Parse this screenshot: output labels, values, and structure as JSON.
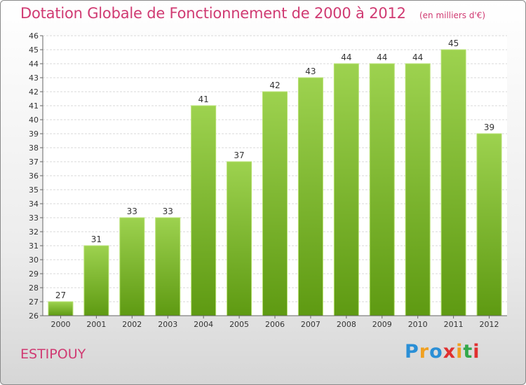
{
  "header": {
    "title": "Dotation Globale de Fonctionnement de 2000 à 2012",
    "subtitle": "(en milliers d'€)"
  },
  "footer": {
    "commune": "ESTIPOUY",
    "logo": [
      "P",
      "r",
      "o",
      "x",
      "i",
      "t",
      "i"
    ],
    "logo_colors": [
      "#2a8fd6",
      "#f0a020",
      "#2a8fd6",
      "#e03030",
      "#f0a020",
      "#33a84a",
      "#e03030"
    ]
  },
  "chart_data": {
    "type": "bar",
    "title": "Dotation Globale de Fonctionnement de 2000 à 2012",
    "subtitle": "(en milliers d'€)",
    "categories": [
      "2000",
      "2001",
      "2002",
      "2003",
      "2004",
      "2005",
      "2006",
      "2007",
      "2008",
      "2009",
      "2010",
      "2011",
      "2012"
    ],
    "values": [
      27,
      31,
      33,
      33,
      41,
      37,
      42,
      43,
      44,
      44,
      44,
      45,
      39
    ],
    "ylim": [
      26,
      46
    ],
    "yticks": [
      26,
      27,
      28,
      29,
      30,
      31,
      32,
      33,
      34,
      35,
      36,
      37,
      38,
      39,
      40,
      41,
      42,
      43,
      44,
      45,
      46
    ],
    "grid": true,
    "bar_color_top": "#9dd24f",
    "bar_color_bottom": "#5e9a12",
    "data_labels": true
  }
}
